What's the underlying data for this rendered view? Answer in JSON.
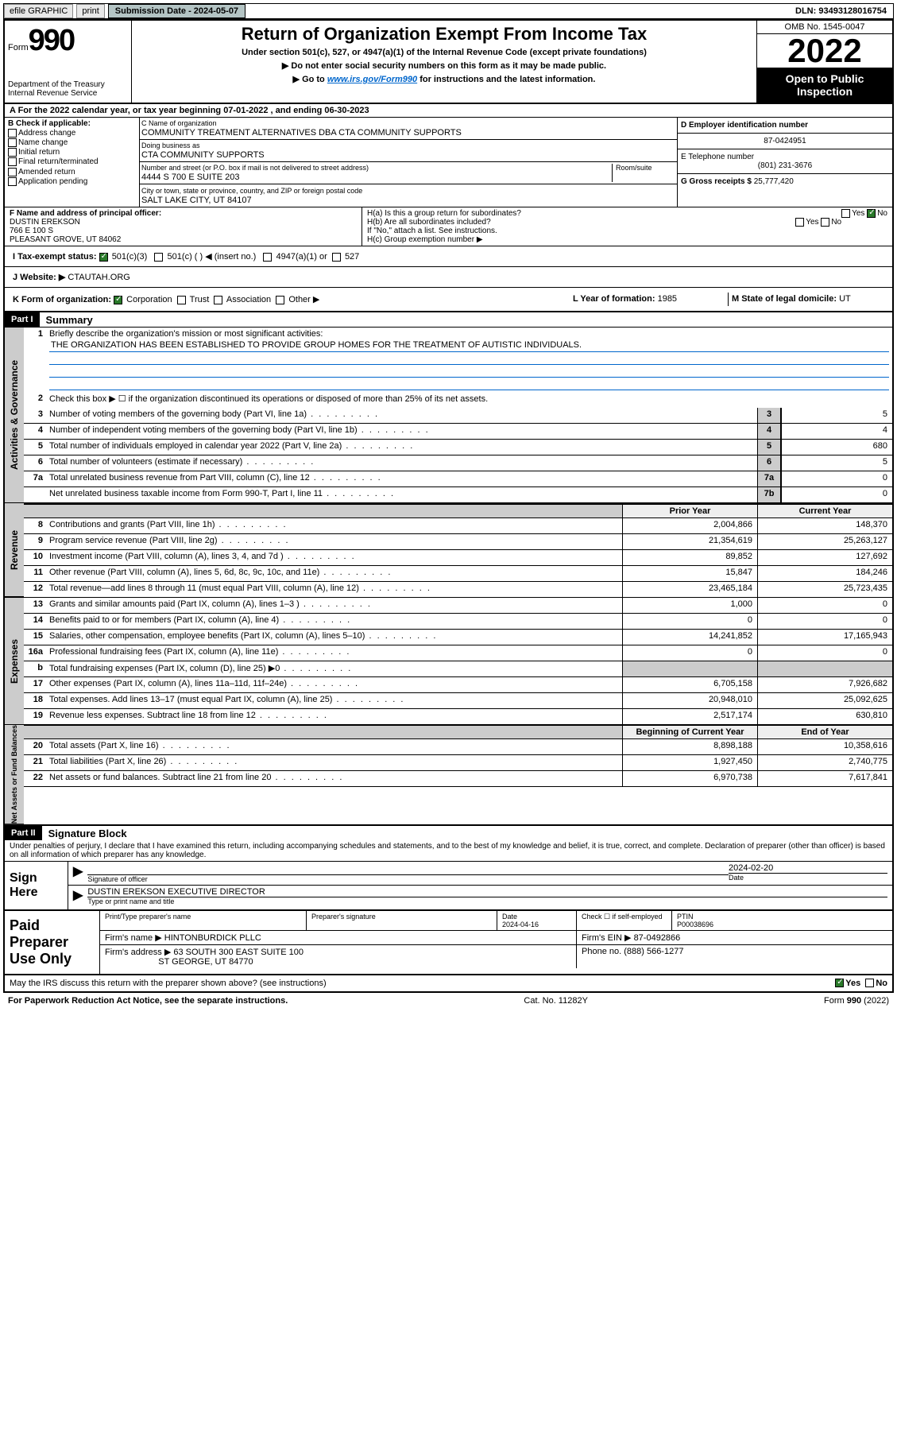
{
  "topbar": {
    "efile": "efile GRAPHIC",
    "print": "print",
    "submission_label": "Submission Date - 2024-05-07",
    "dln": "DLN: 93493128016754"
  },
  "header": {
    "form_label": "Form",
    "form_number": "990",
    "dept": "Department of the Treasury\nInternal Revenue Service",
    "title": "Return of Organization Exempt From Income Tax",
    "subtitle": "Under section 501(c), 527, or 4947(a)(1) of the Internal Revenue Code (except private foundations)",
    "note1": "▶ Do not enter social security numbers on this form as it may be made public.",
    "note2_pre": "▶ Go to ",
    "note2_link": "www.irs.gov/Form990",
    "note2_post": " for instructions and the latest information.",
    "omb": "OMB No. 1545-0047",
    "year": "2022",
    "open": "Open to Public Inspection"
  },
  "period": {
    "text": "A For the 2022 calendar year, or tax year beginning 07-01-2022   , and ending 06-30-2023"
  },
  "block_b": {
    "title": "B Check if applicable:",
    "items": [
      "Address change",
      "Name change",
      "Initial return",
      "Final return/terminated",
      "Amended return",
      "Application pending"
    ]
  },
  "block_c": {
    "name_label": "C Name of organization",
    "name": "COMMUNITY TREATMENT ALTERNATIVES DBA CTA COMMUNITY SUPPORTS",
    "dba_label": "Doing business as",
    "dba": "CTA COMMUNITY SUPPORTS",
    "addr_label": "Number and street (or P.O. box if mail is not delivered to street address)",
    "addr": "4444 S 700 E SUITE 203",
    "room_label": "Room/suite",
    "city_label": "City or town, state or province, country, and ZIP or foreign postal code",
    "city": "SALT LAKE CITY, UT  84107"
  },
  "block_d": {
    "ein_label": "D Employer identification number",
    "ein": "87-0424951",
    "phone_label": "E Telephone number",
    "phone": "(801) 231-3676",
    "gross_label": "G Gross receipts $",
    "gross": "25,777,420"
  },
  "block_f": {
    "label": "F  Name and address of principal officer:",
    "name": "DUSTIN EREKSON",
    "addr1": "766 E 100 S",
    "addr2": "PLEASANT GROVE, UT  84062"
  },
  "block_h": {
    "ha": "H(a)  Is this a group return for subordinates?",
    "hb": "H(b)  Are all subordinates included?",
    "hb_note": "If \"No,\" attach a list. See instructions.",
    "hc": "H(c)  Group exemption number ▶"
  },
  "tax_status": {
    "label": "I  Tax-exempt status:",
    "opt1": "501(c)(3)",
    "opt2": "501(c) (  ) ◀ (insert no.)",
    "opt3": "4947(a)(1) or",
    "opt4": "527"
  },
  "website": {
    "label": "J  Website: ▶",
    "val": "CTAUTAH.ORG"
  },
  "block_k": {
    "label": "K Form of organization:",
    "opts": [
      "Corporation",
      "Trust",
      "Association",
      "Other ▶"
    ]
  },
  "block_l": {
    "label": "L Year of formation:",
    "val": "1985"
  },
  "block_m": {
    "label": "M State of legal domicile:",
    "val": "UT"
  },
  "part1": {
    "header": "Part I",
    "title": "Summary"
  },
  "summary": {
    "line1_label": "Briefly describe the organization's mission or most significant activities:",
    "line1_text": "THE ORGANIZATION HAS BEEN ESTABLISHED TO PROVIDE GROUP HOMES FOR THE TREATMENT OF AUTISTIC INDIVIDUALS.",
    "line2": "Check this box ▶ ☐  if the organization discontinued its operations or disposed of more than 25% of its net assets.",
    "rows_gov": [
      {
        "n": "3",
        "label": "Number of voting members of the governing body (Part VI, line 1a)",
        "box": "3",
        "val": "5"
      },
      {
        "n": "4",
        "label": "Number of independent voting members of the governing body (Part VI, line 1b)",
        "box": "4",
        "val": "4"
      },
      {
        "n": "5",
        "label": "Total number of individuals employed in calendar year 2022 (Part V, line 2a)",
        "box": "5",
        "val": "680"
      },
      {
        "n": "6",
        "label": "Total number of volunteers (estimate if necessary)",
        "box": "6",
        "val": "5"
      },
      {
        "n": "7a",
        "label": "Total unrelated business revenue from Part VIII, column (C), line 12",
        "box": "7a",
        "val": "0"
      },
      {
        "n": "",
        "label": "Net unrelated business taxable income from Form 990-T, Part I, line 11",
        "box": "7b",
        "val": "0"
      }
    ],
    "prior_header": "Prior Year",
    "current_header": "Current Year",
    "revenue": [
      {
        "n": "8",
        "label": "Contributions and grants (Part VIII, line 1h)",
        "prior": "2,004,866",
        "current": "148,370"
      },
      {
        "n": "9",
        "label": "Program service revenue (Part VIII, line 2g)",
        "prior": "21,354,619",
        "current": "25,263,127"
      },
      {
        "n": "10",
        "label": "Investment income (Part VIII, column (A), lines 3, 4, and 7d )",
        "prior": "89,852",
        "current": "127,692"
      },
      {
        "n": "11",
        "label": "Other revenue (Part VIII, column (A), lines 5, 6d, 8c, 9c, 10c, and 11e)",
        "prior": "15,847",
        "current": "184,246"
      },
      {
        "n": "12",
        "label": "Total revenue—add lines 8 through 11 (must equal Part VIII, column (A), line 12)",
        "prior": "23,465,184",
        "current": "25,723,435"
      }
    ],
    "expenses": [
      {
        "n": "13",
        "label": "Grants and similar amounts paid (Part IX, column (A), lines 1–3 )",
        "prior": "1,000",
        "current": "0"
      },
      {
        "n": "14",
        "label": "Benefits paid to or for members (Part IX, column (A), line 4)",
        "prior": "0",
        "current": "0"
      },
      {
        "n": "15",
        "label": "Salaries, other compensation, employee benefits (Part IX, column (A), lines 5–10)",
        "prior": "14,241,852",
        "current": "17,165,943"
      },
      {
        "n": "16a",
        "label": "Professional fundraising fees (Part IX, column (A), line 11e)",
        "prior": "0",
        "current": "0"
      },
      {
        "n": "b",
        "label": "Total fundraising expenses (Part IX, column (D), line 25) ▶0",
        "prior": "",
        "current": "",
        "gray": true
      },
      {
        "n": "17",
        "label": "Other expenses (Part IX, column (A), lines 11a–11d, 11f–24e)",
        "prior": "6,705,158",
        "current": "7,926,682"
      },
      {
        "n": "18",
        "label": "Total expenses. Add lines 13–17 (must equal Part IX, column (A), line 25)",
        "prior": "20,948,010",
        "current": "25,092,625"
      },
      {
        "n": "19",
        "label": "Revenue less expenses. Subtract line 18 from line 12",
        "prior": "2,517,174",
        "current": "630,810"
      }
    ],
    "net_header_prior": "Beginning of Current Year",
    "net_header_current": "End of Year",
    "net": [
      {
        "n": "20",
        "label": "Total assets (Part X, line 16)",
        "prior": "8,898,188",
        "current": "10,358,616"
      },
      {
        "n": "21",
        "label": "Total liabilities (Part X, line 26)",
        "prior": "1,927,450",
        "current": "2,740,775"
      },
      {
        "n": "22",
        "label": "Net assets or fund balances. Subtract line 21 from line 20",
        "prior": "6,970,738",
        "current": "7,617,841"
      }
    ],
    "side_labels": {
      "gov": "Activities & Governance",
      "rev": "Revenue",
      "exp": "Expenses",
      "net": "Net Assets or Fund Balances"
    }
  },
  "part2": {
    "header": "Part II",
    "title": "Signature Block"
  },
  "sig": {
    "penalty": "Under penalties of perjury, I declare that I have examined this return, including accompanying schedules and statements, and to the best of my knowledge and belief, it is true, correct, and complete. Declaration of preparer (other than officer) is based on all information of which preparer has any knowledge.",
    "sign_here": "Sign Here",
    "sig_officer": "Signature of officer",
    "date_label": "Date",
    "date": "2024-02-20",
    "name": "DUSTIN EREKSON  EXECUTIVE DIRECTOR",
    "name_label": "Type or print name and title"
  },
  "paid": {
    "title": "Paid Preparer Use Only",
    "print_label": "Print/Type preparer's name",
    "sig_label": "Preparer's signature",
    "date_label": "Date",
    "date": "2024-04-16",
    "check_label": "Check ☐ if self-employed",
    "ptin_label": "PTIN",
    "ptin": "P00038696",
    "firm_name_label": "Firm's name    ▶",
    "firm_name": "HINTONBURDICK PLLC",
    "firm_ein_label": "Firm's EIN ▶",
    "firm_ein": "87-0492866",
    "firm_addr_label": "Firm's address ▶",
    "firm_addr": "63 SOUTH 300 EAST SUITE 100",
    "firm_city": "ST GEORGE, UT  84770",
    "phone_label": "Phone no.",
    "phone": "(888) 566-1277"
  },
  "discuss": {
    "label": "May the IRS discuss this return with the preparer shown above? (see instructions)",
    "yes": "Yes",
    "no": "No"
  },
  "footer": {
    "left": "For Paperwork Reduction Act Notice, see the separate instructions.",
    "mid": "Cat. No. 11282Y",
    "right": "Form 990 (2022)"
  }
}
